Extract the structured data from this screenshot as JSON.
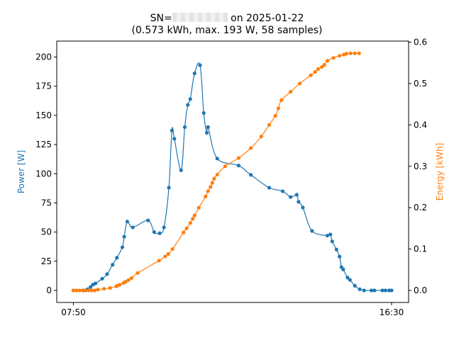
{
  "title": {
    "serial_prefix": "SN=",
    "date_text": "on 2025-01-22",
    "subtitle": "(0.573 kWh, max. 193 W, 58 samples)"
  },
  "colors": {
    "power": "#1f77b4",
    "energy": "#ff7f0e"
  },
  "chart_data": {
    "type": "line",
    "x_unit": "minutes since midnight",
    "x_tick_labels": [
      "07:50",
      "16:30"
    ],
    "xlim": [
      470,
      990
    ],
    "grid": false,
    "axes": {
      "left": {
        "label": "Power [W]",
        "ylim": [
          0,
          210
        ],
        "ticks": [
          0,
          25,
          50,
          75,
          100,
          125,
          150,
          175,
          200
        ]
      },
      "right": {
        "label": "Energy [kWh]",
        "ylim": [
          0,
          0.6
        ],
        "ticks": [
          0.0,
          0.1,
          0.2,
          0.3,
          0.4,
          0.5,
          0.6
        ]
      }
    },
    "series": [
      {
        "name": "Power [W]",
        "axis": "left",
        "x": [
          470,
          486,
          493,
          498,
          502,
          506,
          517,
          525,
          534,
          541,
          550,
          553,
          558,
          567,
          592,
          602,
          611,
          618,
          626,
          631,
          635,
          646,
          652,
          657,
          661,
          668,
          677,
          683,
          688,
          690,
          705,
          740,
          760,
          790,
          812,
          825,
          835,
          838,
          845,
          860,
          885,
          890,
          893,
          900,
          905,
          908,
          911,
          918,
          922,
          930,
          938,
          945,
          957,
          962,
          975,
          980,
          986,
          990
        ],
        "values": [
          0,
          0,
          1,
          3,
          5,
          6,
          10,
          14,
          22,
          28,
          37,
          46,
          59,
          54,
          60,
          50,
          49,
          54,
          88,
          137,
          130,
          103,
          140,
          159,
          164,
          186,
          193,
          152,
          135,
          140,
          113,
          107,
          99,
          88,
          85,
          80,
          82,
          76,
          71,
          51,
          47,
          48,
          42,
          35,
          29,
          20,
          18,
          11,
          9,
          4,
          1,
          0,
          0,
          0,
          0,
          0,
          0,
          0
        ]
      },
      {
        "name": "Energy [kWh]",
        "axis": "right",
        "x": [
          470,
          475,
          480,
          485,
          490,
          495,
          500,
          505,
          510,
          520,
          530,
          540,
          543,
          546,
          552,
          555,
          560,
          565,
          575,
          610,
          620,
          625,
          632,
          650,
          655,
          661,
          665,
          668,
          675,
          686,
          690,
          694,
          697,
          700,
          705,
          718,
          740,
          760,
          777,
          790,
          800,
          805,
          810,
          825,
          840,
          858,
          865,
          870,
          876,
          880,
          885,
          895,
          905,
          912,
          916,
          923,
          930,
          937
        ],
        "values": [
          0,
          0,
          0,
          0,
          0,
          0,
          0,
          0,
          0.002,
          0.004,
          0.006,
          0.01,
          0.012,
          0.014,
          0.018,
          0.021,
          0.025,
          0.03,
          0.042,
          0.072,
          0.082,
          0.088,
          0.1,
          0.14,
          0.15,
          0.163,
          0.173,
          0.181,
          0.2,
          0.227,
          0.24,
          0.25,
          0.26,
          0.27,
          0.28,
          0.3,
          0.32,
          0.344,
          0.372,
          0.4,
          0.422,
          0.44,
          0.46,
          0.48,
          0.5,
          0.52,
          0.528,
          0.535,
          0.54,
          0.545,
          0.555,
          0.562,
          0.567,
          0.57,
          0.572,
          0.573,
          0.573,
          0.573
        ]
      }
    ]
  }
}
